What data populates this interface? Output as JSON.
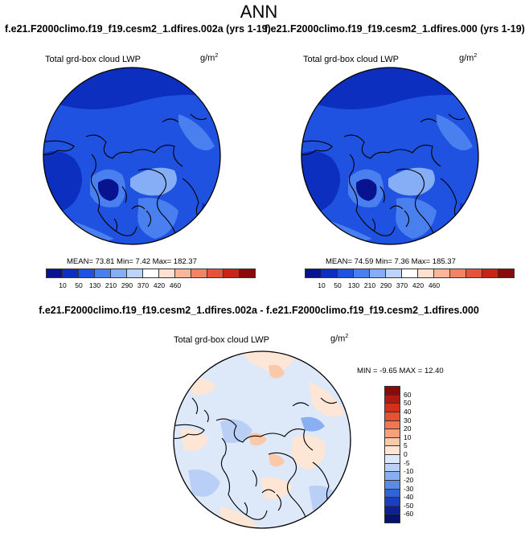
{
  "title": "ANN",
  "panels": {
    "left_case": "f.e21.F2000climo.f19_f19.cesm2_1.dfires.002a (yrs 1-19)",
    "right_case": "f.e21.F2000climo.f19_f19.cesm2_1.dfires.000 (yrs 1-19)",
    "diff_case": "f.e21.F2000climo.f19_f19.cesm2_1.dfires.002a - f.e21.F2000climo.f19_f19.cesm2_1.dfires.000",
    "variable_label": "Total grd-box cloud LWP",
    "units_base": "g/m",
    "units_exp": "2"
  },
  "stats": {
    "left": "MEAN=  73.81  Min=   7.42  Max= 182.37",
    "right": "MEAN=  74.59  Min=   7.36  Max= 185.37",
    "diff": "MIN =  -9.65  MAX =  12.40"
  },
  "colorbar_main": {
    "ticks": [
      "10",
      "50",
      "130",
      "210",
      "290",
      "370",
      "420",
      "460"
    ],
    "colors": [
      "#08138f",
      "#0d2fc0",
      "#1f52e0",
      "#4a7ff0",
      "#86aef7",
      "#bcd3fb",
      "#ffffff",
      "#fde0cf",
      "#f9b69a",
      "#f28465",
      "#e5533a",
      "#c92418",
      "#8a0a0a"
    ]
  },
  "colorbar_diff": {
    "ticks": [
      "60",
      "50",
      "40",
      "30",
      "20",
      "10",
      "5",
      "0",
      "-5",
      "-10",
      "-20",
      "-30",
      "-40",
      "-50",
      "-60"
    ],
    "colors": [
      "#8a0a0a",
      "#b0190f",
      "#d3301c",
      "#e8502f",
      "#f2764f",
      "#f7a07c",
      "#fbc8aa",
      "#fde6d6",
      "#dde8f9",
      "#b9cff6",
      "#8aaff0",
      "#5a8ce6",
      "#3462d7",
      "#1a3fc0",
      "#0b2296",
      "#061270"
    ]
  },
  "map_colors": {
    "ocean_base": "#1f52e0",
    "deep": "#0d2fc0",
    "darkest": "#08138f",
    "light": "#4a7ff0",
    "lighter": "#86aef7",
    "diff_base": "#dde8f9",
    "diff_pos": "#fde6d6",
    "diff_pos2": "#fbc8aa",
    "diff_neg": "#b9cff6",
    "diff_neg2": "#8aaff0"
  }
}
